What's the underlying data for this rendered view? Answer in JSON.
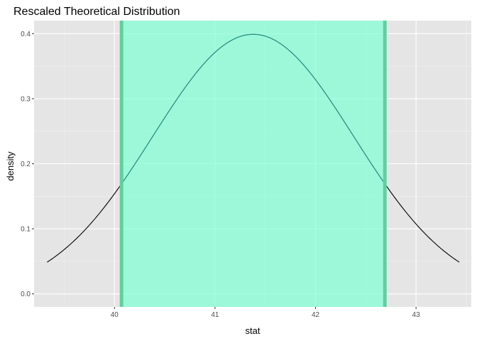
{
  "chart_data": {
    "type": "line",
    "title": "Rescaled Theoretical Distribution",
    "xlabel": "stat",
    "ylabel": "density",
    "xlim": [
      39.2,
      43.55
    ],
    "ylim": [
      -0.02,
      0.42
    ],
    "x_ticks": [
      40,
      41,
      42,
      43
    ],
    "y_ticks": [
      0.0,
      0.1,
      0.2,
      0.3,
      0.4
    ],
    "x_tick_labels": [
      "40",
      "41",
      "42",
      "43"
    ],
    "y_tick_labels": [
      "0.0",
      "0.1",
      "0.2",
      "0.3",
      "0.4"
    ],
    "grid": true,
    "legend": "none",
    "distribution": {
      "kind": "normal",
      "mean": 41.38,
      "sd": 1.0,
      "x_range": [
        39.33,
        43.43
      ]
    },
    "shaded_interval": {
      "lower": 40.07,
      "upper": 42.69
    },
    "colors": {
      "panel_background": "#e5e5e5",
      "grid_major": "#ffffff",
      "grid_minor": "#f2f2f2",
      "curve_outside": "#000000",
      "curve_inside": "#1f8a7a",
      "shade_fill": "#7fffd4",
      "shade_alpha": 0.7,
      "bound_line": "#5fd0a0"
    }
  }
}
